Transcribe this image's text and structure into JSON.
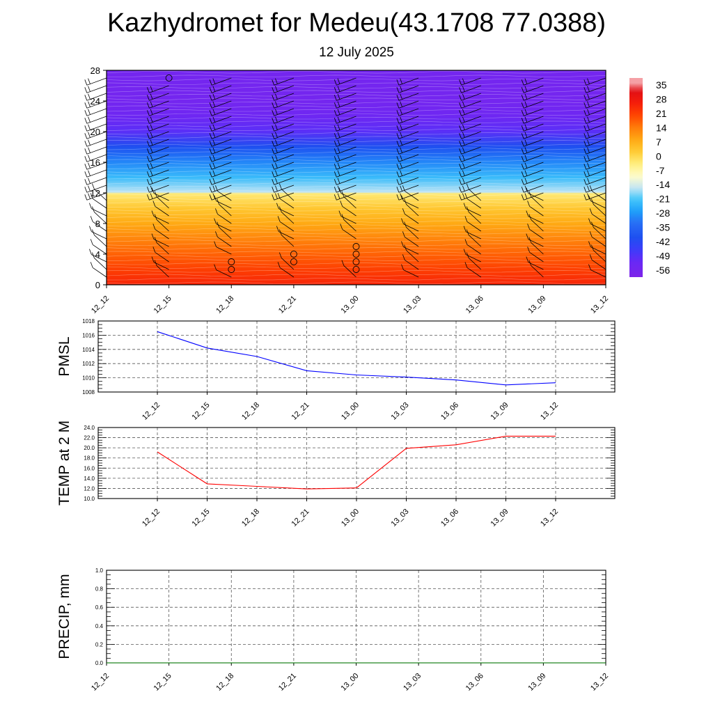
{
  "title": "Kazhydromet for Medeu(43.1708 77.0388)",
  "subtitle": "12 July 2025",
  "time_labels": [
    "12_12",
    "12_15",
    "12_18",
    "12_21",
    "13_00",
    "13_03",
    "13_06",
    "13_09",
    "13_12"
  ],
  "chart_data": [
    {
      "type": "heatmap",
      "title": "Kazhydromet for Medeu(43.1708 77.0388)",
      "subtitle": "12 July 2025",
      "x": [
        "12_12",
        "12_15",
        "12_18",
        "12_21",
        "13_00",
        "13_03",
        "13_06",
        "13_09",
        "13_12"
      ],
      "ylim": [
        0,
        28
      ],
      "yticks": [
        0,
        4,
        8,
        12,
        16,
        20,
        24,
        28
      ],
      "colorbar_labels": [
        "35",
        "28",
        "21",
        "14",
        "7",
        "0",
        "-7",
        "-14",
        "-21",
        "-28",
        "-35",
        "-42",
        "-49",
        "-56"
      ],
      "colorbar_levels": [
        35,
        28,
        21,
        14,
        7,
        0,
        -7,
        -14,
        -21,
        -28,
        -35,
        -42,
        -49,
        -56
      ],
      "temperature_profile": [
        {
          "level": 0,
          "value": 25
        },
        {
          "level": 2,
          "value": 21
        },
        {
          "level": 4,
          "value": 17
        },
        {
          "level": 6,
          "value": 13
        },
        {
          "level": 8,
          "value": 8
        },
        {
          "level": 10,
          "value": 3
        },
        {
          "level": 11.9,
          "value": -3
        },
        {
          "level": 12.1,
          "value": -16
        },
        {
          "level": 14,
          "value": -23
        },
        {
          "level": 16,
          "value": -30
        },
        {
          "level": 18,
          "value": -40
        },
        {
          "level": 20,
          "value": -50
        },
        {
          "level": 22,
          "value": -54
        },
        {
          "level": 24,
          "value": -56
        },
        {
          "level": 28,
          "value": -56
        }
      ],
      "colors": {
        "warm": "#ff2600",
        "cold": "#8a2be2",
        "freezing_band": "#fffccc"
      },
      "wind_barb_columns": [
        "12_12",
        "12_15",
        "12_18",
        "12_21",
        "13_00",
        "13_03",
        "13_06",
        "13_09",
        "13_12"
      ],
      "calm_markers": [
        {
          "x": "12_15",
          "level": 27
        },
        {
          "x": "12_18",
          "level": 2
        },
        {
          "x": "12_18",
          "level": 3
        },
        {
          "x": "12_21",
          "level": 3
        },
        {
          "x": "12_21",
          "level": 4
        },
        {
          "x": "13_00",
          "level": 2
        },
        {
          "x": "13_00",
          "level": 3
        },
        {
          "x": "13_00",
          "level": 4
        },
        {
          "x": "13_00",
          "level": 5
        }
      ]
    },
    {
      "type": "line",
      "ylabel": "PMSL",
      "x": [
        "12_12",
        "12_15",
        "12_18",
        "12_21",
        "13_00",
        "13_03",
        "13_06",
        "13_09",
        "13_12"
      ],
      "series": [
        {
          "values": [
            1016.5,
            1014.2,
            1013.0,
            1011.0,
            1010.4,
            1010.1,
            1009.7,
            1009.0,
            1009.3
          ],
          "color": "#0000ff"
        }
      ],
      "ylim": [
        1008,
        1018
      ],
      "yticks": [
        "1008",
        "1010",
        "1012",
        "1014",
        "1016",
        "1018"
      ],
      "grid": true
    },
    {
      "type": "line",
      "ylabel": "TEMP at 2 M",
      "x": [
        "12_12",
        "12_15",
        "12_18",
        "12_21",
        "13_00",
        "13_03",
        "13_06",
        "13_09",
        "13_12"
      ],
      "series": [
        {
          "values": [
            19.2,
            12.9,
            12.4,
            11.9,
            12.1,
            19.9,
            20.6,
            22.3,
            22.3
          ],
          "color": "#ff0000"
        }
      ],
      "ylim": [
        10,
        24
      ],
      "yticks": [
        "10.0",
        "12.0",
        "14.0",
        "16.0",
        "18.0",
        "20.0",
        "22.0",
        "24.0"
      ],
      "grid": true
    },
    {
      "type": "line",
      "ylabel": "PRECIP, mm",
      "x": [
        "12_12",
        "12_15",
        "12_18",
        "12_21",
        "13_00",
        "13_03",
        "13_06",
        "13_09",
        "13_12"
      ],
      "series": [
        {
          "values": [
            0,
            0,
            0,
            0,
            0,
            0,
            0,
            0,
            0
          ],
          "color": "#008000"
        }
      ],
      "ylim": [
        0,
        1
      ],
      "yticks": [
        "0.0",
        "0.2",
        "0.4",
        "0.6",
        "0.8",
        "1.0"
      ],
      "grid": true
    }
  ]
}
